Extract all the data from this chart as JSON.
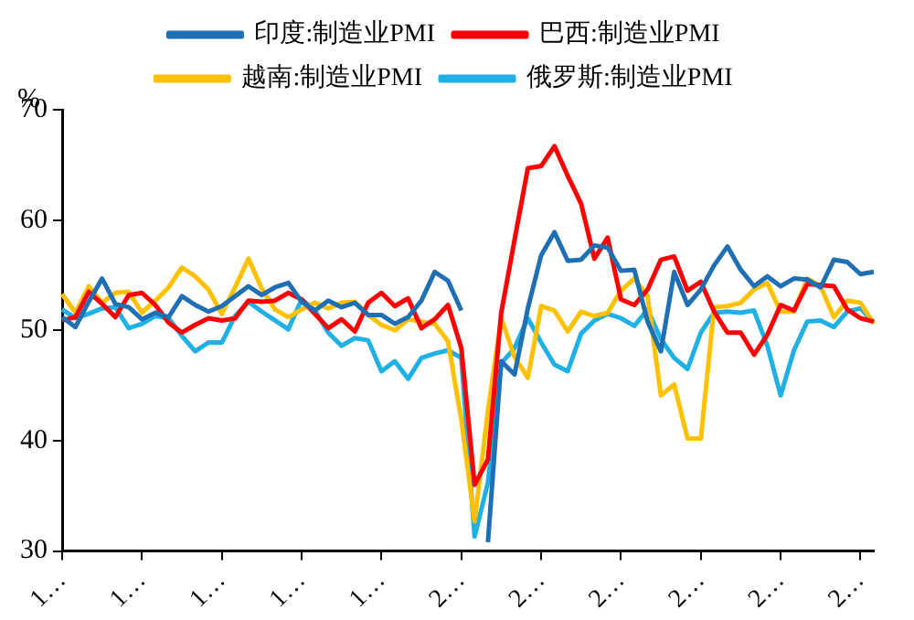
{
  "chart_data": {
    "type": "line",
    "ylabel": "%",
    "categories": [
      "1…",
      null,
      null,
      null,
      null,
      null,
      "1…",
      null,
      null,
      null,
      null,
      null,
      "1…",
      null,
      null,
      null,
      null,
      null,
      "1…",
      null,
      null,
      null,
      null,
      null,
      "1…",
      null,
      null,
      null,
      null,
      null,
      "2…",
      null,
      null,
      null,
      null,
      null,
      "2…",
      null,
      null,
      null,
      null,
      null,
      "2…",
      null,
      null,
      null,
      null,
      null,
      "2…",
      null,
      null,
      null,
      null,
      null,
      "2…",
      null,
      null,
      null,
      null,
      null,
      "2…",
      null
    ],
    "series": [
      {
        "name": "印度:制造业PMI",
        "color": "#1f6fb5",
        "values": [
          51.2,
          50.3,
          52.6,
          54.7,
          52.4,
          52.1,
          51.0,
          51.6,
          51.2,
          53.1,
          52.3,
          51.7,
          52.2,
          53.1,
          54.0,
          53.2,
          53.9,
          54.3,
          52.6,
          51.8,
          52.7,
          52.1,
          52.5,
          51.4,
          51.4,
          50.6,
          51.2,
          52.7,
          55.3,
          54.5,
          51.8,
          null,
          30.8,
          47.2,
          46.0,
          52.0,
          56.8,
          58.9,
          56.3,
          56.4,
          57.7,
          57.5,
          55.4,
          55.5,
          50.8,
          48.1,
          55.3,
          52.3,
          53.7,
          55.9,
          57.6,
          55.5,
          54.0,
          54.9,
          54.0,
          54.7,
          54.6,
          53.9,
          56.4,
          56.2,
          55.1,
          55.3
        ]
      },
      {
        "name": "巴西:制造业PMI",
        "color": "#ff0000",
        "values": [
          50.9,
          51.2,
          53.5,
          52.4,
          51.2,
          53.2,
          53.4,
          52.3,
          50.7,
          49.8,
          50.5,
          51.1,
          50.9,
          51.1,
          52.7,
          52.6,
          52.7,
          53.4,
          52.8,
          51.5,
          50.2,
          51.0,
          49.9,
          52.5,
          53.4,
          52.2,
          52.9,
          50.2,
          51.0,
          52.3,
          48.4,
          36.0,
          38.3,
          51.6,
          58.2,
          64.7,
          64.9,
          66.7,
          64.0,
          61.5,
          56.5,
          58.4,
          52.8,
          52.3,
          53.7,
          56.4,
          56.7,
          53.6,
          54.4,
          51.7,
          49.8,
          49.8,
          47.8,
          49.6,
          52.3,
          51.8,
          54.2,
          54.1,
          54.0,
          51.9,
          51.1,
          50.8
        ]
      },
      {
        "name": "越南:制造业PMI",
        "color": "#ffc000",
        "values": [
          53.3,
          51.6,
          54.0,
          52.5,
          53.4,
          53.5,
          51.6,
          52.7,
          53.9,
          55.7,
          54.9,
          53.7,
          51.5,
          53.9,
          56.5,
          53.8,
          51.9,
          51.2,
          51.9,
          52.5,
          52.0,
          52.5,
          52.6,
          51.4,
          50.5,
          50.0,
          51.0,
          50.8,
          50.6,
          49.0,
          41.9,
          32.7,
          42.7,
          51.1,
          47.6,
          45.7,
          52.2,
          51.8,
          49.9,
          51.7,
          51.3,
          51.6,
          53.6,
          54.7,
          53.1,
          44.1,
          45.1,
          40.2,
          40.2,
          52.1,
          52.2,
          52.5,
          53.7,
          54.3,
          51.7,
          51.7,
          54.7,
          54.0,
          51.2,
          52.7,
          52.5,
          50.6
        ]
      },
      {
        "name": "俄罗斯:制造业PMI",
        "color": "#1fb0e6",
        "values": [
          51.9,
          51.1,
          51.5,
          52.0,
          52.1,
          50.2,
          50.6,
          51.3,
          51.1,
          49.5,
          48.1,
          48.9,
          48.9,
          51.3,
          52.6,
          51.7,
          50.9,
          50.1,
          52.8,
          51.8,
          49.8,
          48.6,
          49.3,
          49.1,
          46.3,
          47.2,
          45.6,
          47.5,
          47.9,
          48.2,
          47.5,
          31.3,
          36.2,
          47.0,
          48.4,
          51.1,
          48.9,
          46.9,
          46.3,
          49.7,
          50.9,
          51.5,
          51.1,
          50.4,
          51.9,
          49.2,
          47.5,
          46.5,
          49.8,
          51.6,
          51.7,
          51.6,
          51.8,
          48.6,
          44.1,
          48.2,
          50.8,
          50.9,
          50.3,
          51.7,
          52.0,
          50.7
        ]
      }
    ],
    "ylim": [
      30,
      70
    ],
    "yticks": [
      30,
      40,
      50,
      60,
      70
    ],
    "grid": false,
    "legend": "top",
    "marker": "none",
    "line_style": "solid"
  }
}
